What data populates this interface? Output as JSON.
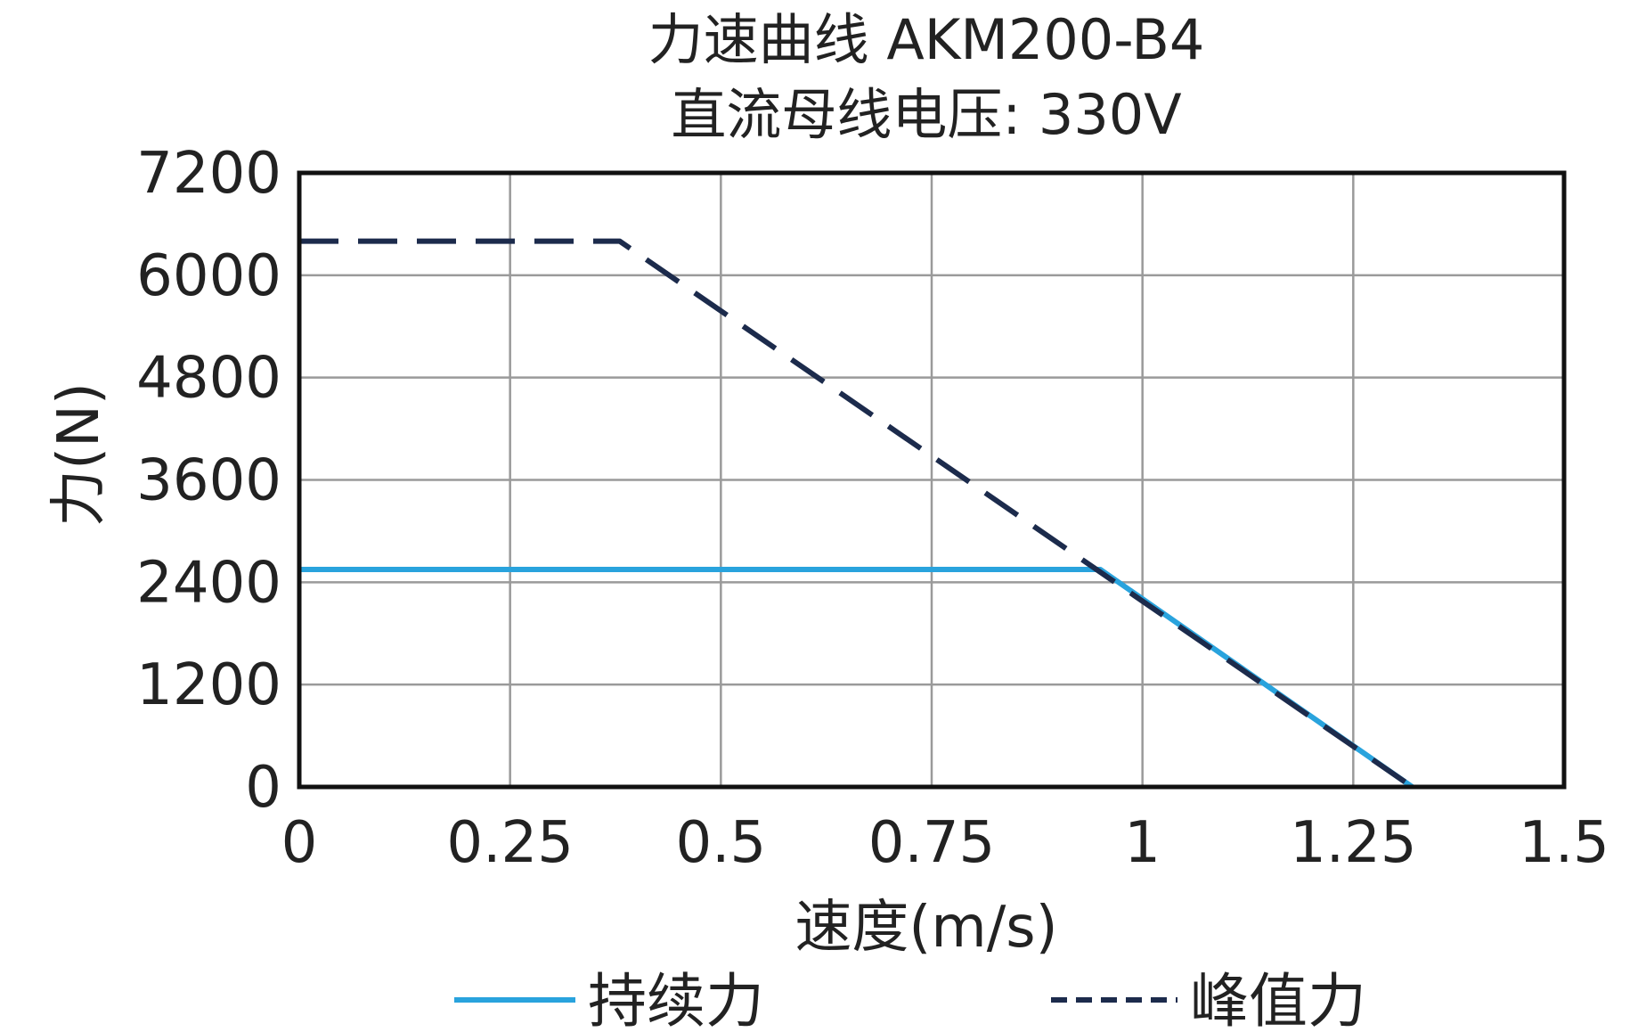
{
  "chart_data": {
    "type": "line",
    "title": "力速曲线 AKM200-B4",
    "subtitle": "直流母线电压: 330V",
    "xlabel": "速度(m/s)",
    "ylabel": "力(N)",
    "xlim": [
      0,
      1.5
    ],
    "ylim": [
      0,
      7200
    ],
    "x_ticks": [
      "0",
      "0.25",
      "0.5",
      "0.75",
      "1",
      "1.25",
      "1.5"
    ],
    "y_ticks": [
      "0",
      "1200",
      "2400",
      "3600",
      "4800",
      "6000",
      "7200"
    ],
    "grid": true,
    "legend_position": "bottom",
    "series": [
      {
        "name": "持续力",
        "style": "solid",
        "color": "#29a3dd",
        "x": [
          0,
          0.95,
          1.32
        ],
        "y": [
          2550,
          2550,
          0
        ]
      },
      {
        "name": "峰值力",
        "style": "dashed",
        "color": "#1c2b4c",
        "x": [
          0,
          0.38,
          1.32
        ],
        "y": [
          6400,
          6400,
          0
        ]
      }
    ]
  }
}
